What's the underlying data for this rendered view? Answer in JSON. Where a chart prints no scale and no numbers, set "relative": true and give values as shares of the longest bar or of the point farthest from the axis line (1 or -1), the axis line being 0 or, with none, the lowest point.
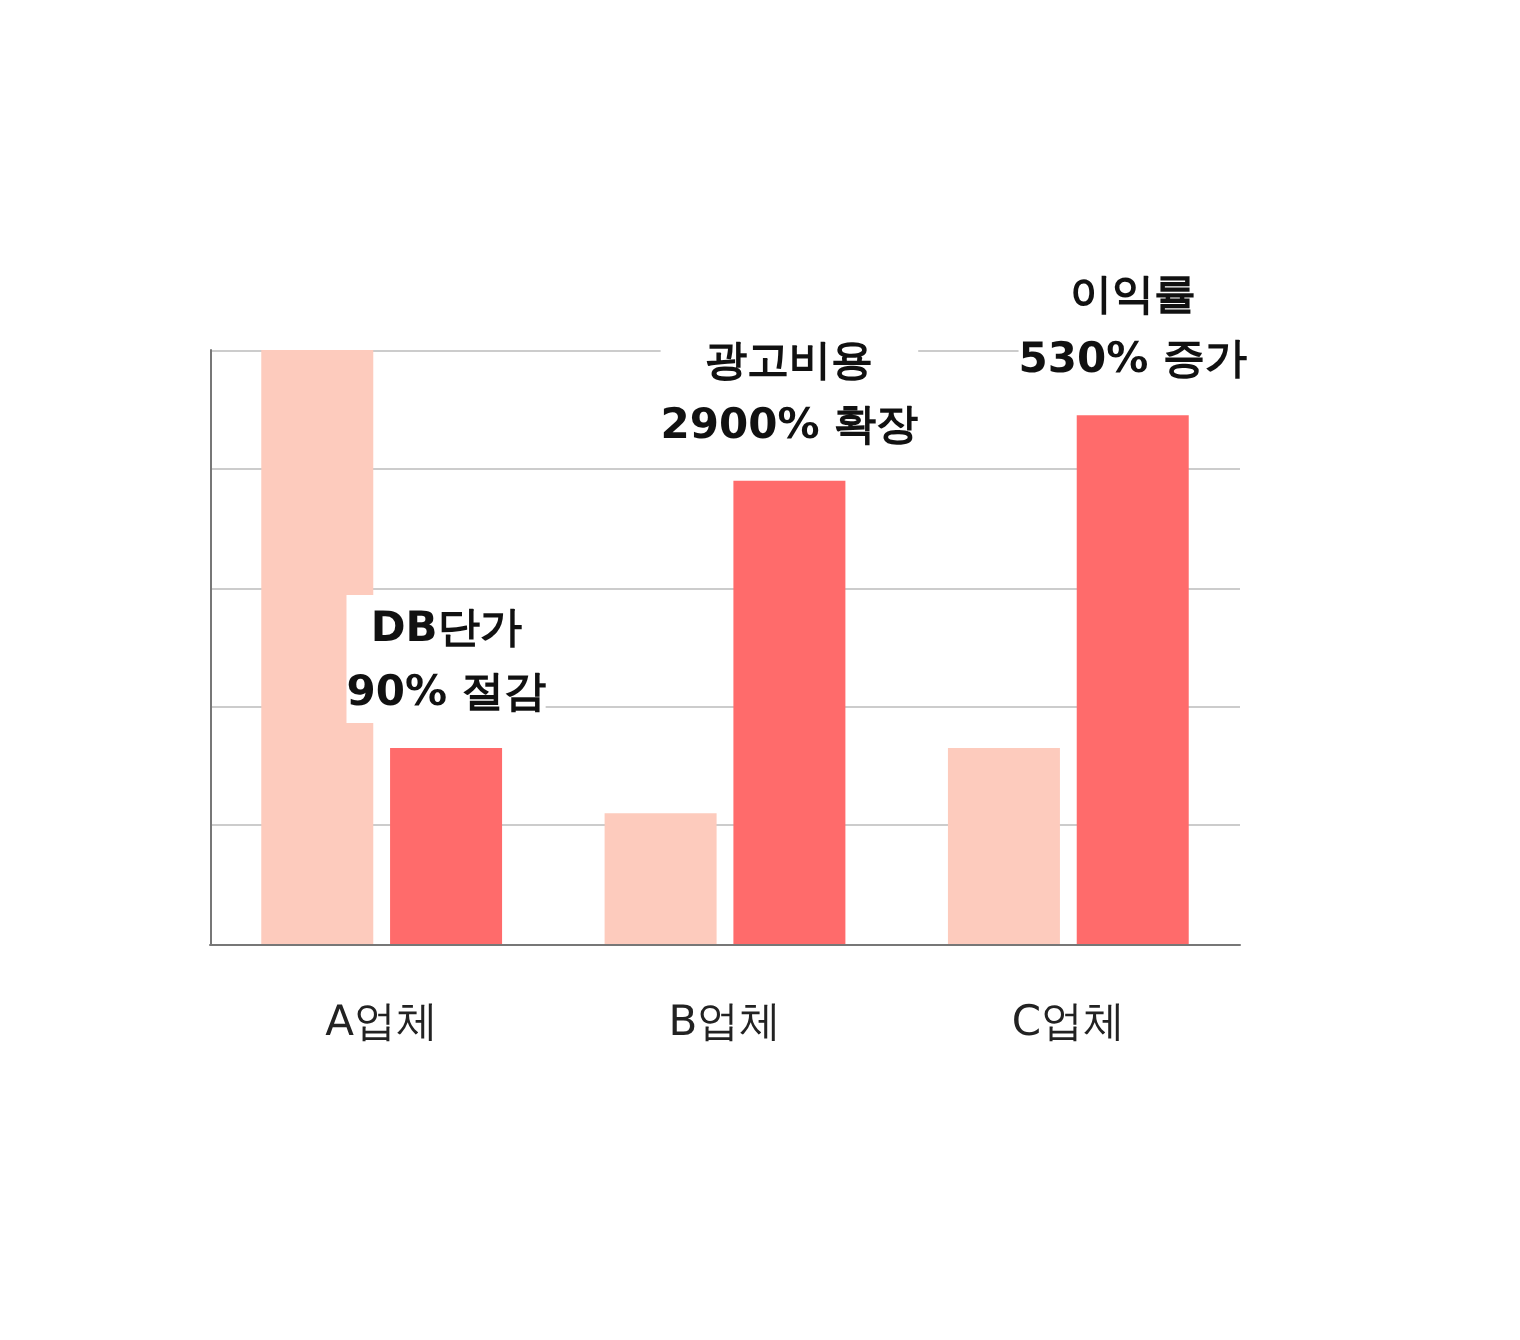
{
  "chart_data": {
    "type": "bar",
    "relative": true,
    "categories": [
      "A업체",
      "B업체",
      "C업체"
    ],
    "series": [
      {
        "color": "#fdcbbd",
        "values": [
          1,
          0.22,
          0.33
        ]
      },
      {
        "color": "#ff6b6b",
        "values": [
          0.33,
          0.78,
          0.89
        ]
      }
    ],
    "annotations": [
      {
        "text": "DB단가\n90% 절감",
        "x": "A업체",
        "y": 0.33
      },
      {
        "text": "광고비용\n2900% 확장",
        "x": "B업체",
        "y": 0.78
      },
      {
        "text": "이익률\n530% 증가",
        "x": "C업체",
        "y": 0.89
      }
    ],
    "grid": "y"
  }
}
